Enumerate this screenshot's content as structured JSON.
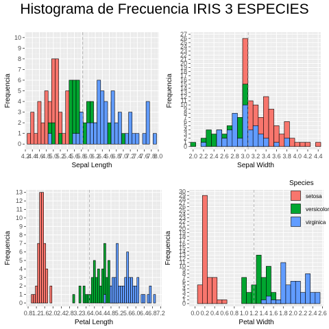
{
  "title": "Histograma de Frecuencia IRIS 3 ESPECIES",
  "legend": {
    "title": "Species",
    "entries": [
      {
        "label": "setosa",
        "color": "#F8766D"
      },
      {
        "label": "versicolor",
        "color": "#00A630"
      },
      {
        "label": "virginica",
        "color": "#619CFF"
      }
    ]
  },
  "chart_data": [
    {
      "type": "bar",
      "xlabel": "Sepal Length",
      "ylabel": "Frequencia",
      "xlim": [
        4.18,
        8.02
      ],
      "ylim": [
        -0.5,
        10.5
      ],
      "xticks": [
        "4.2",
        "4.4",
        "4.6",
        "4.8",
        "5.0",
        "5.2",
        "5.4",
        "5.6",
        "5.8",
        "6.0",
        "6.2",
        "6.4",
        "6.6",
        "6.8",
        "7.0",
        "7.2",
        "7.4",
        "7.6",
        "7.8",
        "8.0"
      ],
      "yticks": [
        "0",
        "1",
        "2",
        "3",
        "4",
        "5",
        "6",
        "7",
        "8",
        "9",
        "10"
      ],
      "mean_line": 5.84,
      "bin_width": 0.1,
      "series": [
        {
          "name": "setosa",
          "bins": [
            [
              4.3,
              1
            ],
            [
              4.4,
              3
            ],
            [
              4.5,
              1
            ],
            [
              4.6,
              4
            ],
            [
              4.7,
              2
            ],
            [
              4.8,
              5
            ],
            [
              4.9,
              4
            ],
            [
              5.0,
              8
            ],
            [
              5.1,
              8
            ],
            [
              5.2,
              3
            ],
            [
              5.3,
              1
            ],
            [
              5.4,
              5
            ],
            [
              5.5,
              2
            ],
            [
              5.7,
              2
            ],
            [
              5.8,
              1
            ]
          ]
        },
        {
          "name": "versicolor",
          "bins": [
            [
              4.9,
              2
            ],
            [
              5.0,
              2
            ],
            [
              5.2,
              1
            ],
            [
              5.5,
              6
            ],
            [
              5.6,
              6
            ],
            [
              5.7,
              6
            ],
            [
              5.8,
              3
            ],
            [
              5.9,
              2
            ],
            [
              6.0,
              4
            ],
            [
              6.1,
              4
            ],
            [
              6.2,
              2
            ],
            [
              6.3,
              4
            ],
            [
              6.4,
              2
            ],
            [
              6.5,
              1
            ],
            [
              6.6,
              2
            ],
            [
              6.7,
              4
            ],
            [
              6.8,
              1
            ],
            [
              6.9,
              1
            ],
            [
              7.0,
              1
            ]
          ]
        },
        {
          "name": "virginica",
          "bins": [
            [
              4.9,
              1
            ],
            [
              5.6,
              1
            ],
            [
              5.7,
              1
            ],
            [
              5.8,
              3
            ],
            [
              6.0,
              2
            ],
            [
              6.1,
              2
            ],
            [
              6.2,
              2
            ],
            [
              6.3,
              6
            ],
            [
              6.4,
              5
            ],
            [
              6.5,
              4
            ],
            [
              6.7,
              5
            ],
            [
              6.8,
              2
            ],
            [
              6.9,
              3
            ],
            [
              7.1,
              1
            ],
            [
              7.2,
              3
            ],
            [
              7.3,
              1
            ],
            [
              7.4,
              1
            ],
            [
              7.6,
              1
            ],
            [
              7.7,
              4
            ],
            [
              7.9,
              1
            ]
          ]
        }
      ]
    },
    {
      "type": "bar",
      "xlabel": "Sepal Width",
      "ylabel": "Frequencia",
      "xlim": [
        1.95,
        4.45
      ],
      "ylim": [
        -0.7,
        27.5
      ],
      "xticks": [
        "2.0",
        "2.2",
        "2.4",
        "2.6",
        "2.8",
        "3.0",
        "3.2",
        "3.4",
        "3.6",
        "3.8",
        "4.0",
        "4.2",
        "4.4"
      ],
      "yticks": [
        "0",
        "1",
        "2",
        "3",
        "4",
        "5",
        "6",
        "7",
        "8",
        "9",
        "10",
        "11",
        "12",
        "13",
        "14",
        "15",
        "16",
        "17",
        "18",
        "19",
        "20",
        "21",
        "22",
        "23",
        "24",
        "25",
        "26",
        "27"
      ],
      "mean_line": 3.057,
      "bin_width": 0.1,
      "series": [
        {
          "name": "setosa",
          "bins": [
            [
              2.3,
              1
            ],
            [
              2.9,
              1
            ],
            [
              3.0,
              26
            ],
            [
              3.1,
              11
            ],
            [
              3.2,
              10
            ],
            [
              3.3,
              7
            ],
            [
              3.4,
              12
            ],
            [
              3.5,
              9
            ],
            [
              3.6,
              5
            ],
            [
              3.7,
              3
            ],
            [
              3.8,
              6
            ],
            [
              3.9,
              2
            ],
            [
              4.0,
              1
            ],
            [
              4.1,
              1
            ],
            [
              4.2,
              1
            ],
            [
              4.4,
              1
            ]
          ]
        },
        {
          "name": "versicolor",
          "bins": [
            [
              2.0,
              1
            ],
            [
              2.2,
              2
            ],
            [
              2.3,
              4
            ],
            [
              2.4,
              3
            ],
            [
              2.5,
              4
            ],
            [
              2.6,
              3
            ],
            [
              2.7,
              5
            ],
            [
              2.8,
              6
            ],
            [
              2.9,
              7
            ],
            [
              3.0,
              15
            ],
            [
              3.1,
              3
            ],
            [
              3.2,
              3
            ],
            [
              3.3,
              1
            ],
            [
              3.4,
              1
            ]
          ]
        },
        {
          "name": "virginica",
          "bins": [
            [
              2.2,
              1
            ],
            [
              2.5,
              4
            ],
            [
              2.6,
              2
            ],
            [
              2.7,
              4
            ],
            [
              2.8,
              8
            ],
            [
              2.9,
              2
            ],
            [
              3.0,
              10
            ],
            [
              3.1,
              4
            ],
            [
              3.2,
              5
            ],
            [
              3.3,
              3
            ],
            [
              3.4,
              2
            ],
            [
              3.6,
              1
            ],
            [
              3.8,
              2
            ]
          ]
        }
      ]
    },
    {
      "type": "bar",
      "xlabel": "Petal Length",
      "ylabel": "Frequencia",
      "xlim": [
        0.7,
        7.25
      ],
      "ylim": [
        -0.4,
        13.3
      ],
      "xticks": [
        "0.8",
        "1.2",
        "1.6",
        "2.0",
        "2.4",
        "2.8",
        "3.2",
        "3.6",
        "4.0",
        "4.4",
        "4.8",
        "5.2",
        "5.6",
        "6.0",
        "6.4",
        "6.8",
        "7.2"
      ],
      "yticks": [
        "0",
        "1",
        "2",
        "3",
        "4",
        "5",
        "6",
        "7",
        "8",
        "9",
        "10",
        "11",
        "12",
        "13"
      ],
      "mean_line": 3.76,
      "bin_width": 0.1,
      "series": [
        {
          "name": "setosa",
          "bins": [
            [
              1.0,
              1
            ],
            [
              1.1,
              1
            ],
            [
              1.2,
              2
            ],
            [
              1.3,
              7
            ],
            [
              1.4,
              13
            ],
            [
              1.5,
              13
            ],
            [
              1.6,
              7
            ],
            [
              1.7,
              4
            ],
            [
              1.9,
              2
            ]
          ]
        },
        {
          "name": "versicolor",
          "bins": [
            [
              3.0,
              1
            ],
            [
              3.3,
              2
            ],
            [
              3.5,
              2
            ],
            [
              3.6,
              1
            ],
            [
              3.7,
              1
            ],
            [
              3.8,
              1
            ],
            [
              3.9,
              3
            ],
            [
              4.0,
              5
            ],
            [
              4.1,
              3
            ],
            [
              4.2,
              4
            ],
            [
              4.3,
              2
            ],
            [
              4.4,
              4
            ],
            [
              4.5,
              7
            ],
            [
              4.6,
              3
            ],
            [
              4.7,
              5
            ],
            [
              4.8,
              2
            ],
            [
              4.9,
              2
            ],
            [
              5.0,
              1
            ],
            [
              5.1,
              1
            ]
          ]
        },
        {
          "name": "virginica",
          "bins": [
            [
              4.5,
              1
            ],
            [
              4.8,
              2
            ],
            [
              4.9,
              3
            ],
            [
              5.0,
              3
            ],
            [
              5.1,
              7
            ],
            [
              5.2,
              2
            ],
            [
              5.3,
              2
            ],
            [
              5.4,
              2
            ],
            [
              5.5,
              3
            ],
            [
              5.6,
              6
            ],
            [
              5.7,
              3
            ],
            [
              5.8,
              3
            ],
            [
              5.9,
              2
            ],
            [
              6.0,
              2
            ],
            [
              6.1,
              3
            ],
            [
              6.3,
              1
            ],
            [
              6.4,
              1
            ],
            [
              6.6,
              1
            ],
            [
              6.7,
              2
            ],
            [
              6.9,
              1
            ]
          ]
        }
      ]
    },
    {
      "type": "bar",
      "xlabel": "Petal Width",
      "ylabel": "Frequencia",
      "xlim": [
        -0.12,
        2.62
      ],
      "ylim": [
        -0.75,
        30.5
      ],
      "xticks": [
        "0.0",
        "0.2",
        "0.4",
        "0.6",
        "0.8",
        "1.0",
        "1.2",
        "1.4",
        "1.6",
        "1.8",
        "2.0",
        "2.2",
        "2.4",
        "2.6"
      ],
      "yticks": [
        "0",
        "1",
        "2",
        "3",
        "4",
        "5",
        "6",
        "7",
        "8",
        "9",
        "10",
        "11",
        "12",
        "13",
        "14",
        "15",
        "16",
        "17",
        "18",
        "19",
        "20",
        "21",
        "22",
        "23",
        "24",
        "25",
        "26",
        "27",
        "28",
        "29",
        "30"
      ],
      "mean_line": 1.2,
      "bin_width": 0.1,
      "series": [
        {
          "name": "setosa",
          "bins": [
            [
              0.1,
              5
            ],
            [
              0.2,
              29
            ],
            [
              0.3,
              7
            ],
            [
              0.4,
              7
            ],
            [
              0.5,
              1
            ],
            [
              0.6,
              1
            ]
          ]
        },
        {
          "name": "versicolor",
          "bins": [
            [
              1.0,
              7
            ],
            [
              1.1,
              3
            ],
            [
              1.2,
              5
            ],
            [
              1.3,
              13
            ],
            [
              1.4,
              7
            ],
            [
              1.5,
              10
            ],
            [
              1.6,
              3
            ],
            [
              1.7,
              1
            ],
            [
              1.8,
              1
            ]
          ]
        },
        {
          "name": "virginica",
          "bins": [
            [
              1.4,
              1
            ],
            [
              1.5,
              2
            ],
            [
              1.6,
              1
            ],
            [
              1.7,
              1
            ],
            [
              1.8,
              11
            ],
            [
              1.9,
              5
            ],
            [
              2.0,
              6
            ],
            [
              2.1,
              6
            ],
            [
              2.2,
              3
            ],
            [
              2.3,
              8
            ],
            [
              2.4,
              3
            ],
            [
              2.5,
              3
            ]
          ]
        }
      ]
    }
  ]
}
